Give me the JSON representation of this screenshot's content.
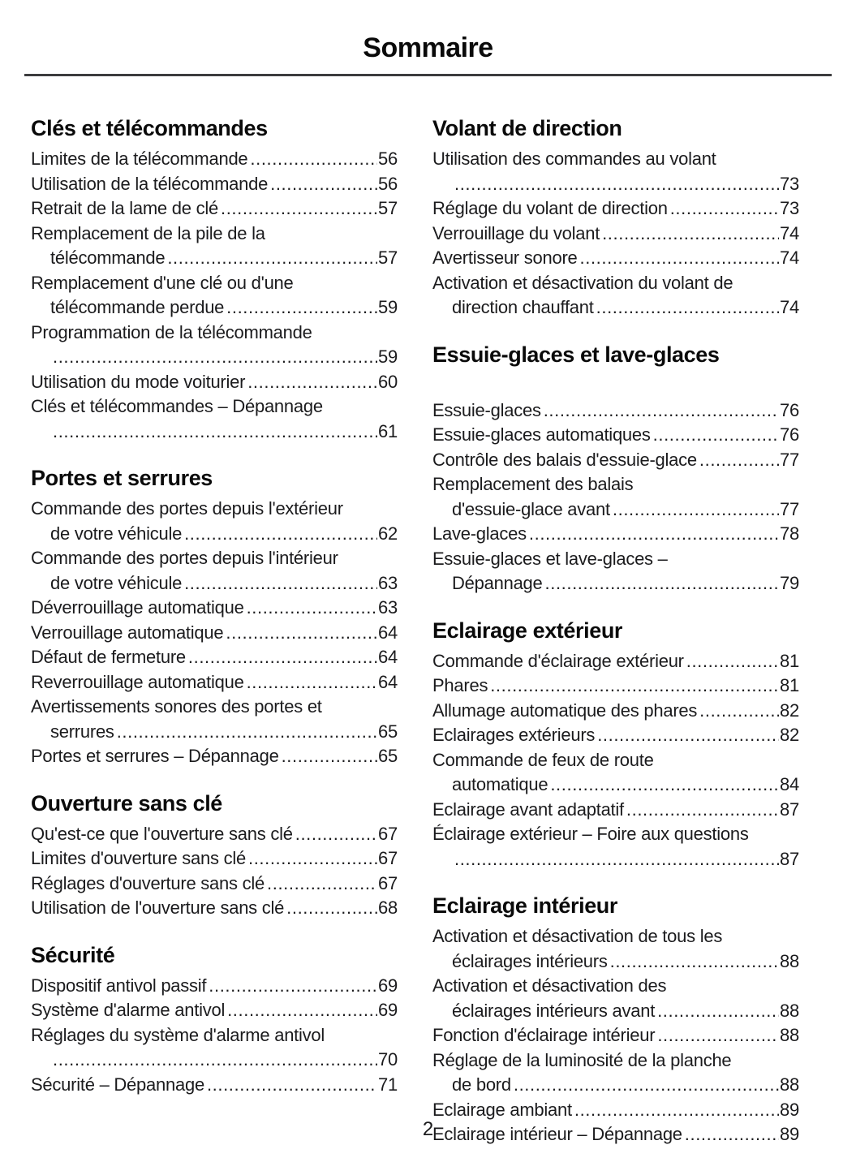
{
  "header": {
    "title": "Sommaire"
  },
  "footer": {
    "page_number": "2"
  },
  "colors": {
    "text": "#1b1b1d",
    "heading": "#0a0a0a",
    "rule": "#3c3c3e",
    "background": "#ffffff"
  },
  "columns": [
    {
      "name": "left",
      "sections": [
        {
          "title": "Clés et télécommandes",
          "title_gap": false,
          "entries": [
            {
              "lines": [
                "Limites de la télécommande"
              ],
              "page": "56"
            },
            {
              "lines": [
                "Utilisation de la télécommande"
              ],
              "page": "56"
            },
            {
              "lines": [
                "Retrait de la lame de clé"
              ],
              "page": "57"
            },
            {
              "lines": [
                "Remplacement de la pile de la",
                "télécommande"
              ],
              "page": "57"
            },
            {
              "lines": [
                "Remplacement d'une clé ou d'une",
                "télécommande perdue"
              ],
              "page": "59"
            },
            {
              "lines": [
                "Programmation de la télécommande",
                ""
              ],
              "page": "59"
            },
            {
              "lines": [
                "Utilisation du mode voiturier"
              ],
              "page": "60"
            },
            {
              "lines": [
                "Clés et télécommandes – Dépannage",
                ""
              ],
              "page": "61"
            }
          ]
        },
        {
          "title": "Portes et serrures",
          "title_gap": false,
          "entries": [
            {
              "lines": [
                "Commande des portes depuis l'extérieur",
                "de votre véhicule"
              ],
              "page": "62"
            },
            {
              "lines": [
                "Commande des portes depuis l'intérieur",
                "de votre véhicule"
              ],
              "page": "63"
            },
            {
              "lines": [
                "Déverrouillage automatique"
              ],
              "page": "63"
            },
            {
              "lines": [
                "Verrouillage automatique"
              ],
              "page": "64"
            },
            {
              "lines": [
                "Défaut de fermeture"
              ],
              "page": "64"
            },
            {
              "lines": [
                "Reverrouillage automatique"
              ],
              "page": "64"
            },
            {
              "lines": [
                "Avertissements sonores des portes et",
                "serrures"
              ],
              "page": "65"
            },
            {
              "lines": [
                "Portes et serrures – Dépannage"
              ],
              "page": "65"
            }
          ]
        },
        {
          "title": "Ouverture sans clé",
          "title_gap": false,
          "entries": [
            {
              "lines": [
                "Qu'est-ce que l'ouverture sans clé"
              ],
              "page": "67"
            },
            {
              "lines": [
                "Limites d'ouverture sans clé"
              ],
              "page": "67"
            },
            {
              "lines": [
                "Réglages d'ouverture sans clé"
              ],
              "page": "67"
            },
            {
              "lines": [
                "Utilisation de l'ouverture sans clé"
              ],
              "page": "68"
            }
          ]
        },
        {
          "title": "Sécurité",
          "title_gap": false,
          "entries": [
            {
              "lines": [
                "Dispositif antivol passif"
              ],
              "page": "69"
            },
            {
              "lines": [
                "Système d'alarme antivol"
              ],
              "page": "69"
            },
            {
              "lines": [
                "Réglages du système d'alarme antivol",
                ""
              ],
              "page": "70"
            },
            {
              "lines": [
                "Sécurité – Dépannage"
              ],
              "page": "71"
            }
          ]
        }
      ]
    },
    {
      "name": "right",
      "sections": [
        {
          "title": "Volant de direction",
          "title_gap": false,
          "entries": [
            {
              "lines": [
                "Utilisation des commandes au volant",
                ""
              ],
              "page": "73"
            },
            {
              "lines": [
                "Réglage du volant de direction"
              ],
              "page": "73"
            },
            {
              "lines": [
                "Verrouillage du volant"
              ],
              "page": "74"
            },
            {
              "lines": [
                "Avertisseur sonore"
              ],
              "page": "74"
            },
            {
              "lines": [
                "Activation et désactivation du volant de",
                "direction chauffant"
              ],
              "page": "74"
            }
          ]
        },
        {
          "title": "Essuie-glaces et lave-glaces",
          "title_gap": true,
          "entries": [
            {
              "lines": [
                "Essuie-glaces"
              ],
              "page": "76"
            },
            {
              "lines": [
                "Essuie-glaces automatiques"
              ],
              "page": "76"
            },
            {
              "lines": [
                "Contrôle des balais d'essuie-glace"
              ],
              "page": "77"
            },
            {
              "lines": [
                "Remplacement des balais",
                "d'essuie-glace avant"
              ],
              "page": "77"
            },
            {
              "lines": [
                "Lave-glaces"
              ],
              "page": "78"
            },
            {
              "lines": [
                "Essuie-glaces et lave-glaces –",
                "Dépannage"
              ],
              "page": "79"
            }
          ]
        },
        {
          "title": "Eclairage extérieur",
          "title_gap": false,
          "entries": [
            {
              "lines": [
                "Commande d'éclairage extérieur"
              ],
              "page": "81"
            },
            {
              "lines": [
                "Phares"
              ],
              "page": "81"
            },
            {
              "lines": [
                "Allumage automatique des phares"
              ],
              "page": "82"
            },
            {
              "lines": [
                "Eclairages extérieurs"
              ],
              "page": "82"
            },
            {
              "lines": [
                "Commande de feux de route",
                "automatique"
              ],
              "page": "84"
            },
            {
              "lines": [
                "Eclairage avant adaptatif"
              ],
              "page": "87"
            },
            {
              "lines": [
                "Éclairage extérieur – Foire aux questions",
                ""
              ],
              "page": "87"
            }
          ]
        },
        {
          "title": "Eclairage intérieur",
          "title_gap": false,
          "entries": [
            {
              "lines": [
                "Activation et désactivation de tous les",
                "éclairages intérieurs"
              ],
              "page": "88"
            },
            {
              "lines": [
                "Activation et désactivation des",
                "éclairages intérieurs avant"
              ],
              "page": "88"
            },
            {
              "lines": [
                "Fonction d'éclairage intérieur"
              ],
              "page": "88"
            },
            {
              "lines": [
                "Réglage de la luminosité de la planche",
                "de bord"
              ],
              "page": "88"
            },
            {
              "lines": [
                "Eclairage ambiant"
              ],
              "page": "89"
            },
            {
              "lines": [
                "Eclairage intérieur – Dépannage"
              ],
              "page": "89"
            }
          ]
        }
      ]
    }
  ]
}
